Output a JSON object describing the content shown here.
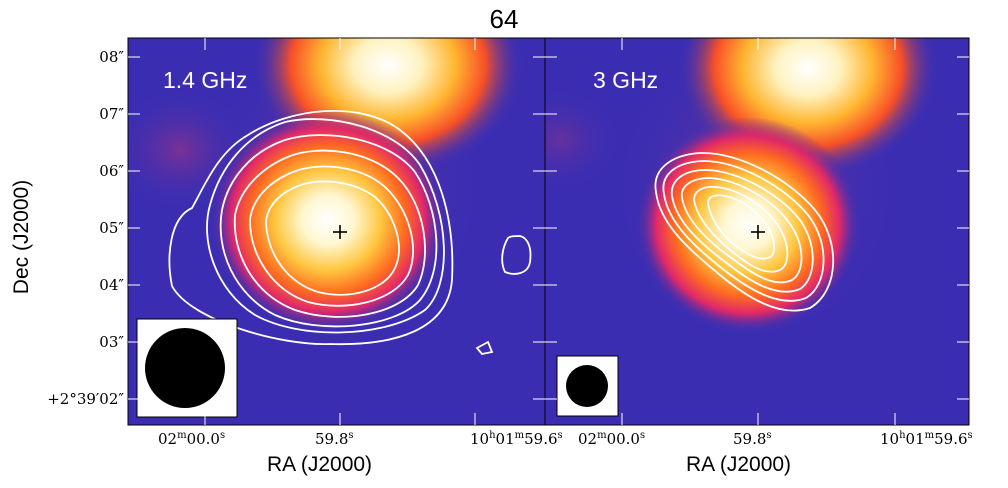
{
  "figure": {
    "title": "64",
    "ylabel": "Dec (J2000)",
    "xlabel": "RA (J2000)"
  },
  "panels": [
    {
      "label": "1.4 GHz",
      "dec_ticks": [
        "08″",
        "07″",
        "06″",
        "05″",
        "04″",
        "03″",
        "+2°39′02″"
      ],
      "ra_ticks": [
        {
          "main": "02",
          "u1": "m",
          "mid": "00.0",
          "u2": "s"
        },
        {
          "main": "59.8",
          "u1": "s"
        },
        {
          "main": "10",
          "u1": "h",
          "mid": "01",
          "u2": "m",
          "rest": "59.6",
          "u3": "s"
        }
      ],
      "contours": "white",
      "beam": "large circular beam"
    },
    {
      "label": "3 GHz",
      "ra_ticks": [
        {
          "main": "02",
          "u1": "m",
          "mid": "00.0",
          "u2": "s"
        },
        {
          "main": "59.8",
          "u1": "s"
        },
        {
          "main": "10",
          "u1": "h",
          "mid": "01",
          "u2": "m",
          "rest": "59.6",
          "u3": "s"
        }
      ],
      "contours": "white",
      "beam": "small circular beam"
    }
  ],
  "colors": {
    "background": "#3c2eb4",
    "hot": "#ffffff",
    "contour": "#ffffff"
  }
}
